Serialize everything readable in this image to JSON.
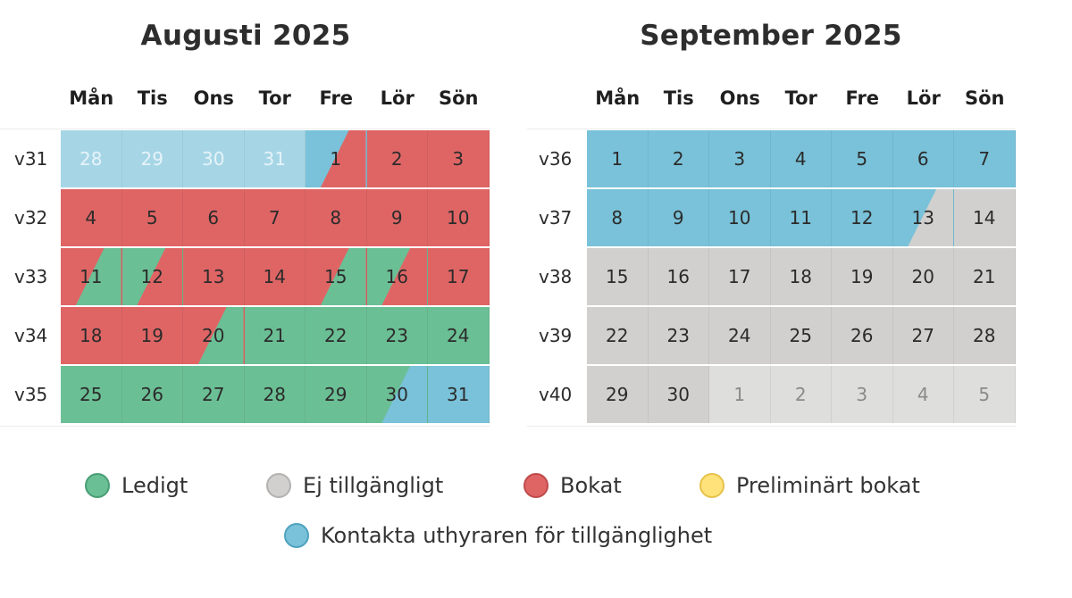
{
  "colors": {
    "free": "#6bbf95",
    "unavailable": "#d1d0cf",
    "booked": "#df6565",
    "preliminary": "#ffe27a",
    "contact": "#79c2d9",
    "contact_past": "#a6d6e6",
    "unavail_other": "#dededd"
  },
  "weekdays": [
    "Mån",
    "Tis",
    "Ons",
    "Tor",
    "Fre",
    "Lör",
    "Sön"
  ],
  "months": [
    {
      "title": "Augusti 2025",
      "weeks": [
        {
          "label": "v31",
          "days": [
            {
              "d": "28",
              "s": "contact_past",
              "muted": true
            },
            {
              "d": "29",
              "s": "contact_past",
              "muted": true
            },
            {
              "d": "30",
              "s": "contact_past",
              "muted": true
            },
            {
              "d": "31",
              "s": "contact_past",
              "muted": true
            },
            {
              "d": "1",
              "s": "contact",
              "s2": "booked"
            },
            {
              "d": "2",
              "s": "booked"
            },
            {
              "d": "3",
              "s": "booked"
            }
          ]
        },
        {
          "label": "v32",
          "days": [
            {
              "d": "4",
              "s": "booked"
            },
            {
              "d": "5",
              "s": "booked"
            },
            {
              "d": "6",
              "s": "booked"
            },
            {
              "d": "7",
              "s": "booked"
            },
            {
              "d": "8",
              "s": "booked"
            },
            {
              "d": "9",
              "s": "booked"
            },
            {
              "d": "10",
              "s": "booked"
            }
          ]
        },
        {
          "label": "v33",
          "days": [
            {
              "d": "11",
              "s": "booked",
              "s2": "free"
            },
            {
              "d": "12",
              "s": "free",
              "s2": "booked"
            },
            {
              "d": "13",
              "s": "booked"
            },
            {
              "d": "14",
              "s": "booked"
            },
            {
              "d": "15",
              "s": "booked",
              "s2": "free"
            },
            {
              "d": "16",
              "s": "free",
              "s2": "booked"
            },
            {
              "d": "17",
              "s": "booked"
            }
          ]
        },
        {
          "label": "v34",
          "days": [
            {
              "d": "18",
              "s": "booked"
            },
            {
              "d": "19",
              "s": "booked"
            },
            {
              "d": "20",
              "s": "booked",
              "s2": "free"
            },
            {
              "d": "21",
              "s": "free"
            },
            {
              "d": "22",
              "s": "free"
            },
            {
              "d": "23",
              "s": "free"
            },
            {
              "d": "24",
              "s": "free"
            }
          ]
        },
        {
          "label": "v35",
          "days": [
            {
              "d": "25",
              "s": "free"
            },
            {
              "d": "26",
              "s": "free"
            },
            {
              "d": "27",
              "s": "free"
            },
            {
              "d": "28",
              "s": "free"
            },
            {
              "d": "29",
              "s": "free"
            },
            {
              "d": "30",
              "s": "free",
              "s2": "contact"
            },
            {
              "d": "31",
              "s": "contact"
            }
          ]
        }
      ]
    },
    {
      "title": "September 2025",
      "weeks": [
        {
          "label": "v36",
          "days": [
            {
              "d": "1",
              "s": "contact"
            },
            {
              "d": "2",
              "s": "contact"
            },
            {
              "d": "3",
              "s": "contact"
            },
            {
              "d": "4",
              "s": "contact"
            },
            {
              "d": "5",
              "s": "contact"
            },
            {
              "d": "6",
              "s": "contact"
            },
            {
              "d": "7",
              "s": "contact"
            }
          ]
        },
        {
          "label": "v37",
          "days": [
            {
              "d": "8",
              "s": "contact"
            },
            {
              "d": "9",
              "s": "contact"
            },
            {
              "d": "10",
              "s": "contact"
            },
            {
              "d": "11",
              "s": "contact"
            },
            {
              "d": "12",
              "s": "contact"
            },
            {
              "d": "13",
              "s": "contact",
              "s2": "unavailable"
            },
            {
              "d": "14",
              "s": "unavailable"
            }
          ]
        },
        {
          "label": "v38",
          "days": [
            {
              "d": "15",
              "s": "unavailable"
            },
            {
              "d": "16",
              "s": "unavailable"
            },
            {
              "d": "17",
              "s": "unavailable"
            },
            {
              "d": "18",
              "s": "unavailable"
            },
            {
              "d": "19",
              "s": "unavailable"
            },
            {
              "d": "20",
              "s": "unavailable"
            },
            {
              "d": "21",
              "s": "unavailable"
            }
          ]
        },
        {
          "label": "v39",
          "days": [
            {
              "d": "22",
              "s": "unavailable"
            },
            {
              "d": "23",
              "s": "unavailable"
            },
            {
              "d": "24",
              "s": "unavailable"
            },
            {
              "d": "25",
              "s": "unavailable"
            },
            {
              "d": "26",
              "s": "unavailable"
            },
            {
              "d": "27",
              "s": "unavailable"
            },
            {
              "d": "28",
              "s": "unavailable"
            }
          ]
        },
        {
          "label": "v40",
          "days": [
            {
              "d": "29",
              "s": "unavailable"
            },
            {
              "d": "30",
              "s": "unavailable"
            },
            {
              "d": "1",
              "s": "unavail_other",
              "muted": true
            },
            {
              "d": "2",
              "s": "unavail_other",
              "muted": true
            },
            {
              "d": "3",
              "s": "unavail_other",
              "muted": true
            },
            {
              "d": "4",
              "s": "unavail_other",
              "muted": true
            },
            {
              "d": "5",
              "s": "unavail_other",
              "muted": true
            }
          ]
        }
      ]
    }
  ],
  "legend": [
    {
      "label": "Ledigt",
      "color": "free",
      "border": "#4a9e75"
    },
    {
      "label": "Ej tillgängligt",
      "color": "unavailable",
      "border": "#b3b2b1"
    },
    {
      "label": "Bokat",
      "color": "booked",
      "border": "#c04a4a"
    },
    {
      "label": "Preliminärt bokat",
      "color": "preliminary",
      "border": "#e6c24a"
    },
    {
      "label": "Kontakta uthyraren för tillgänglighet",
      "color": "contact",
      "border": "#4ea3bf"
    }
  ]
}
